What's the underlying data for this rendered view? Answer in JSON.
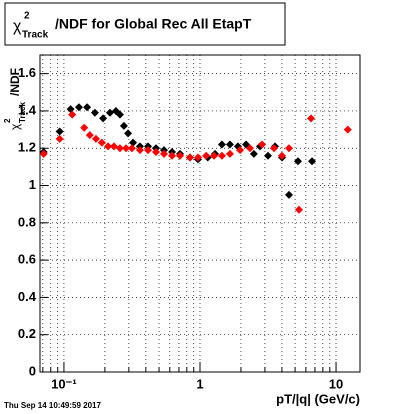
{
  "chart_data": {
    "type": "scatter",
    "title": {
      "symbol": "χ",
      "sup": "2",
      "sub": "Track",
      "text": "/NDF for Global Rec All EtapT"
    },
    "y_label": {
      "symbol": "χ",
      "sup": "2",
      "sub": "Track",
      "text": "/NDF"
    },
    "x_label": "pT/|q| (GeV/c)",
    "footer": "Thu Sep 14 10:49:59 2017",
    "log_x": true,
    "grid": true,
    "xlim": [
      0.0667,
      15
    ],
    "ylim": [
      0,
      1.7
    ],
    "xticks": [
      {
        "value": 0.1,
        "label": "10⁻¹"
      },
      1,
      10
    ],
    "xgrid": [
      0.07,
      0.08,
      0.09,
      0.2,
      0.3,
      0.4,
      0.5,
      0.6,
      0.7,
      0.8,
      0.9,
      2,
      3,
      4,
      5,
      6,
      7,
      8,
      9
    ],
    "yticks": [
      0,
      0.2,
      0.4,
      0.6,
      0.8,
      1,
      1.2,
      1.4,
      1.6
    ],
    "series": [
      {
        "name": "black",
        "color": "#000000",
        "x": [
          0.071,
          0.093,
          0.112,
          0.129,
          0.148,
          0.169,
          0.194,
          0.218,
          0.241,
          0.258,
          0.276,
          0.296,
          0.322,
          0.362,
          0.415,
          0.475,
          0.544,
          0.623,
          0.713,
          0.844,
          0.967,
          1.14,
          1.29,
          1.45,
          1.66,
          1.9,
          2.18,
          2.49,
          2.76,
          3.16,
          3.56,
          4.01,
          4.51,
          5.25,
          6.66
        ],
        "values": [
          1.18,
          1.29,
          1.41,
          1.42,
          1.42,
          1.39,
          1.36,
          1.39,
          1.4,
          1.38,
          1.32,
          1.28,
          1.23,
          1.21,
          1.21,
          1.2,
          1.19,
          1.18,
          1.17,
          1.15,
          1.14,
          1.15,
          1.17,
          1.22,
          1.22,
          1.21,
          1.22,
          1.17,
          1.21,
          1.16,
          1.21,
          1.15,
          0.95,
          1.13,
          1.13
        ]
      },
      {
        "name": "red",
        "color": "#ff0000",
        "x": [
          0.071,
          0.093,
          0.115,
          0.141,
          0.155,
          0.172,
          0.19,
          0.211,
          0.233,
          0.258,
          0.286,
          0.316,
          0.362,
          0.415,
          0.475,
          0.544,
          0.623,
          0.713,
          0.844,
          0.967,
          1.11,
          1.27,
          1.45,
          1.66,
          1.97,
          2.33,
          2.86,
          3.5,
          4.0,
          4.51,
          5.34,
          6.55,
          12.2
        ],
        "values": [
          1.17,
          1.25,
          1.38,
          1.31,
          1.27,
          1.25,
          1.23,
          1.21,
          1.21,
          1.2,
          1.2,
          1.2,
          1.19,
          1.19,
          1.18,
          1.17,
          1.16,
          1.16,
          1.15,
          1.15,
          1.16,
          1.16,
          1.16,
          1.17,
          1.19,
          1.2,
          1.22,
          1.2,
          1.16,
          1.2,
          0.87,
          1.36,
          1.3
        ]
      }
    ]
  }
}
